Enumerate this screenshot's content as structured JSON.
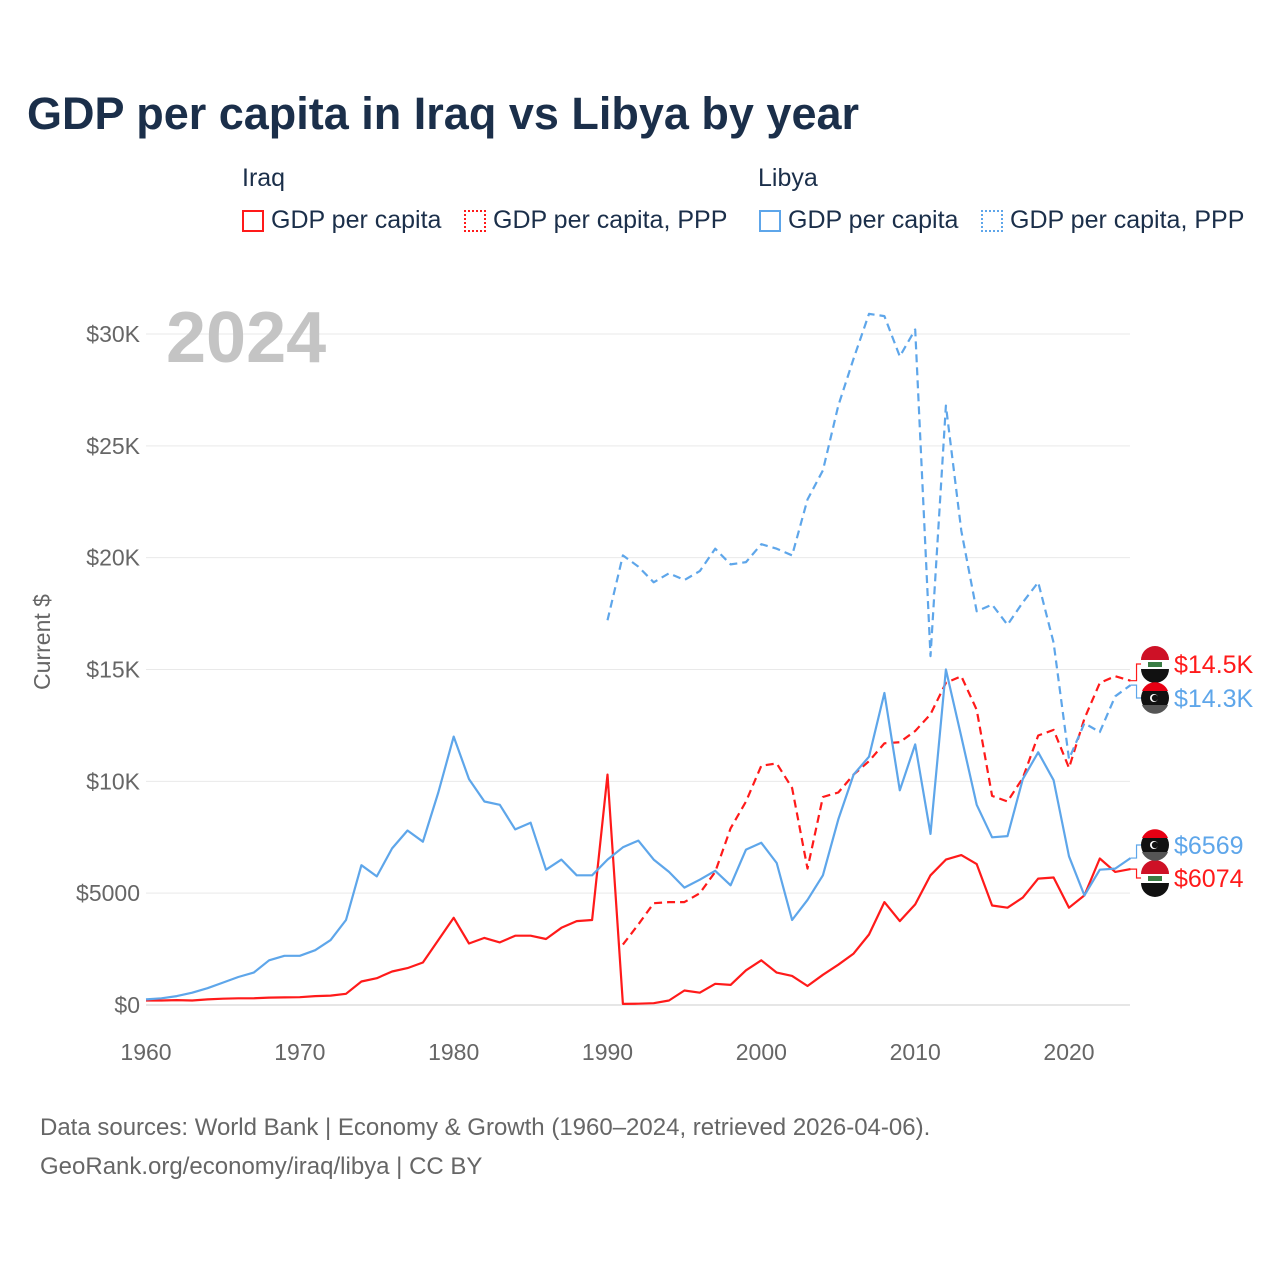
{
  "chart_data": {
    "type": "line",
    "title": "GDP per capita in Iraq vs Libya by year",
    "ylabel": "Current $",
    "xlabel": "",
    "year_watermark": "2024",
    "xlim": [
      1960,
      2024
    ],
    "ylim": [
      0,
      30000
    ],
    "x_ticks": [
      "1960",
      "1970",
      "1980",
      "1990",
      "2000",
      "2010",
      "2020"
    ],
    "x_tick_values": [
      1960,
      1970,
      1980,
      1990,
      2000,
      2010,
      2020
    ],
    "y_ticks": [
      "$0",
      "$5000",
      "$10K",
      "$15K",
      "$20K",
      "$25K",
      "$30K"
    ],
    "y_tick_values": [
      0,
      5000,
      10000,
      15000,
      20000,
      25000,
      30000
    ],
    "legend": {
      "groups": [
        {
          "name": "Iraq",
          "items": [
            "GDP per capita",
            "GDP per capita, PPP"
          ]
        },
        {
          "name": "Libya",
          "items": [
            "GDP per capita",
            "GDP per capita, PPP"
          ]
        }
      ],
      "placement": "top"
    },
    "series": [
      {
        "name": "Iraq GDP per capita",
        "country": "Iraq",
        "color": "#ff1a1a",
        "dash": false,
        "start": 1960,
        "end_label": "$6074",
        "values": [
          200,
          200,
          220,
          200,
          250,
          280,
          300,
          300,
          330,
          340,
          350,
          400,
          420,
          500,
          1050,
          1200,
          1500,
          1650,
          1900,
          2900,
          3900,
          2750,
          3000,
          2800,
          3100,
          3100,
          2950,
          3450,
          3750,
          3800,
          10300,
          50,
          60,
          80,
          200,
          650,
          550,
          950,
          900,
          1550,
          2000,
          1450,
          1300,
          850,
          1350,
          1800,
          2300,
          3150,
          4600,
          3750,
          4500,
          5800,
          6500,
          6700,
          6300,
          4450,
          4350,
          4800,
          5650,
          5700,
          4350,
          4900,
          6550,
          5950,
          6074
        ]
      },
      {
        "name": "Iraq GDP per capita, PPP",
        "country": "Iraq",
        "color": "#ff1a1a",
        "dash": true,
        "start": 1991,
        "end_label": "$14.5K",
        "values": [
          2700,
          3600,
          4550,
          4600,
          4600,
          5000,
          5950,
          7900,
          9100,
          10700,
          10800,
          9700,
          6100,
          9300,
          9500,
          10300,
          10900,
          11700,
          11750,
          12250,
          13000,
          14400,
          14700,
          13200,
          9350,
          9100,
          10150,
          12050,
          12300,
          10600,
          12800,
          14400,
          14700,
          14500
        ]
      },
      {
        "name": "Libya GDP per capita",
        "country": "Libya",
        "color": "#5ea6ea",
        "dash": false,
        "start": 1960,
        "end_label": "$6569",
        "values": [
          250,
          300,
          400,
          550,
          750,
          1000,
          1250,
          1450,
          2000,
          2200,
          2200,
          2450,
          2900,
          3800,
          6250,
          5750,
          7000,
          7800,
          7300,
          9500,
          12000,
          10100,
          9100,
          8950,
          7850,
          8150,
          6050,
          6500,
          5800,
          5800,
          6500,
          7050,
          7350,
          6500,
          5950,
          5250,
          5600,
          6000,
          5350,
          6950,
          7250,
          6350,
          3800,
          4700,
          5800,
          8300,
          10300,
          11100,
          13950,
          9600,
          11650,
          7650,
          15000,
          12000,
          8950,
          7500,
          7550,
          10100,
          11300,
          10050,
          6650,
          4900,
          6050,
          6100,
          6569
        ]
      },
      {
        "name": "Libya GDP per capita, PPP",
        "country": "Libya",
        "color": "#5ea6ea",
        "dash": true,
        "start": 1990,
        "end_label": "$14.3K",
        "values": [
          17200,
          20100,
          19600,
          18900,
          19300,
          19000,
          19400,
          20400,
          19700,
          19800,
          20600,
          20400,
          20100,
          22600,
          23900,
          26800,
          28900,
          30900,
          30800,
          29000,
          30200,
          15600,
          26800,
          21200,
          17600,
          17900,
          17000,
          18000,
          18900,
          16200,
          11000,
          12600,
          12200,
          13800,
          14300
        ]
      }
    ]
  },
  "footer": {
    "line1": "Data sources: World Bank | Economy & Growth (1960–2024, retrieved 2026-04-06).",
    "line2": "GeoRank.org/economy/iraq/libya | CC BY"
  }
}
